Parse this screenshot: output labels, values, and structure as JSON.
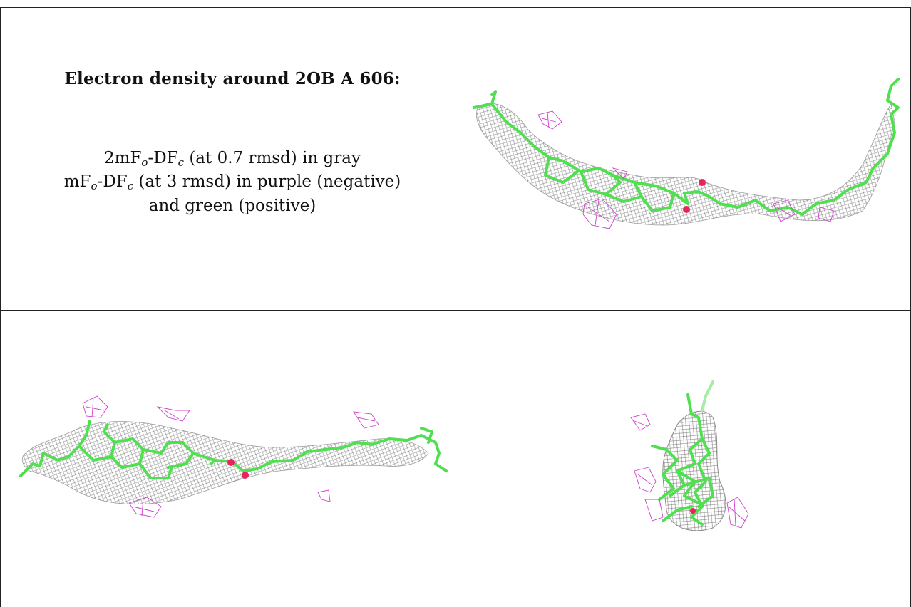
{
  "title": "Electron density around 2OB A 606:",
  "legend": {
    "line1_pre": "2mF",
    "line1_sub1": "o",
    "line1_mid": "-DF",
    "line1_sub2": "c",
    "line1_post": " (at 0.7 rmsd) in gray",
    "line2_pre": "mF",
    "line2_sub1": "o",
    "line2_mid": "-DF",
    "line2_sub2": "c",
    "line2_post": " (at 3 rmsd) in purple (negative)",
    "line3": "and green (positive)"
  },
  "colors": {
    "stick": "#4ee04e",
    "mesh": "#8c8c8c",
    "negative": "#d040d0",
    "oxygen": "#e8245a"
  },
  "panels": [
    {
      "name": "view-1",
      "view": "ligand bent"
    },
    {
      "name": "view-2",
      "view": "ligand horizontal"
    },
    {
      "name": "view-3",
      "view": "ligand end-on"
    }
  ]
}
